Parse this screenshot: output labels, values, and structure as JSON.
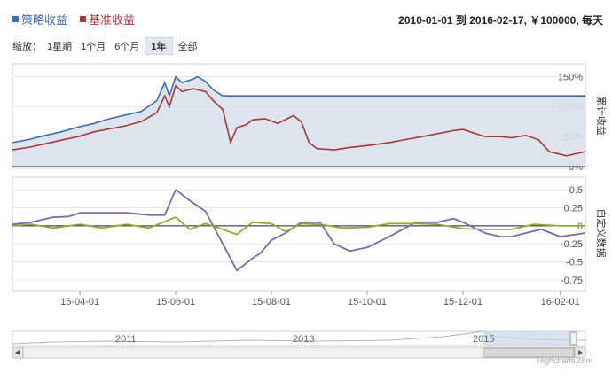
{
  "legend": {
    "strategy": {
      "label": "策略收益",
      "color": "#3f6da8"
    },
    "benchmark": {
      "label": "基准收益",
      "color": "#a33a3a"
    }
  },
  "range_info": "2010-01-01 到 2016-02-17, ￥100000, 每天",
  "zoom": {
    "label": "缩放：",
    "buttons": [
      "1星期",
      "1个月",
      "6个月",
      "1年",
      "全部"
    ],
    "active": "1年"
  },
  "credit": "Highcharts.com",
  "chart_data": [
    {
      "type": "line",
      "ytitle": "累计收益",
      "yticks": [
        "150%",
        "100%",
        "50%",
        "0%"
      ],
      "ylim": [
        0,
        170
      ],
      "xticks": [
        "15-04-01",
        "15-06-01",
        "15-08-01",
        "15-10-01",
        "15-12-01",
        "16-02-01"
      ],
      "series": [
        {
          "name": "策略收益",
          "color": "#3f6da8",
          "fill": "#d9e1ec",
          "x": [
            "15-02-17",
            "15-02-27",
            "15-03-10",
            "15-03-20",
            "15-03-31",
            "15-04-10",
            "15-04-20",
            "15-04-30",
            "15-05-10",
            "15-05-20",
            "15-05-25",
            "15-05-28",
            "15-06-01",
            "15-06-05",
            "15-06-12",
            "15-06-15",
            "15-06-20",
            "15-06-25",
            "15-07-01",
            "15-07-10",
            "15-08-01",
            "15-09-01",
            "15-10-01",
            "15-11-01",
            "15-12-01",
            "16-01-01",
            "16-02-17"
          ],
          "values": [
            40,
            45,
            52,
            58,
            66,
            72,
            80,
            86,
            92,
            110,
            140,
            118,
            150,
            140,
            146,
            150,
            142,
            128,
            118,
            118,
            118,
            118,
            118,
            118,
            118,
            118,
            118
          ]
        },
        {
          "name": "基准收益",
          "color": "#a33a3a",
          "x": [
            "15-02-17",
            "15-02-27",
            "15-03-10",
            "15-03-20",
            "15-03-31",
            "15-04-10",
            "15-04-20",
            "15-04-30",
            "15-05-10",
            "15-05-20",
            "15-05-25",
            "15-05-28",
            "15-06-01",
            "15-06-05",
            "15-06-12",
            "15-06-20",
            "15-06-25",
            "15-07-01",
            "15-07-06",
            "15-07-10",
            "15-07-16",
            "15-07-20",
            "15-07-28",
            "15-08-05",
            "15-08-15",
            "15-08-20",
            "15-08-25",
            "15-08-30",
            "15-09-10",
            "15-09-20",
            "15-10-01",
            "15-10-15",
            "15-10-25",
            "15-11-05",
            "15-11-15",
            "15-11-25",
            "15-12-01",
            "15-12-15",
            "15-12-25",
            "16-01-01",
            "16-01-10",
            "16-01-18",
            "16-01-25",
            "16-02-05",
            "16-02-17"
          ],
          "values": [
            28,
            32,
            38,
            44,
            50,
            58,
            63,
            68,
            75,
            90,
            118,
            100,
            135,
            125,
            130,
            125,
            110,
            95,
            40,
            65,
            70,
            78,
            80,
            72,
            85,
            75,
            40,
            30,
            28,
            32,
            35,
            40,
            45,
            50,
            55,
            60,
            62,
            50,
            50,
            48,
            52,
            45,
            25,
            18,
            25
          ]
        }
      ]
    },
    {
      "type": "line",
      "ytitle": "自定义数据",
      "yticks": [
        "0.5",
        "0.25",
        "0",
        "-0.25",
        "-0.5",
        "-0.75"
      ],
      "ylim": [
        -0.85,
        0.65
      ],
      "series": [
        {
          "name": "purple",
          "color": "#7f67a8",
          "x": [
            "15-02-17",
            "15-03-01",
            "15-03-15",
            "15-03-25",
            "15-04-01",
            "15-04-15",
            "15-05-01",
            "15-05-15",
            "15-05-25",
            "15-06-01",
            "15-06-10",
            "15-06-20",
            "15-07-01",
            "15-07-10",
            "15-07-20",
            "15-07-25",
            "15-08-01",
            "15-08-10",
            "15-08-20",
            "15-09-01",
            "15-09-10",
            "15-09-20",
            "15-10-01",
            "15-10-15",
            "15-11-01",
            "15-11-15",
            "15-11-25",
            "15-12-01",
            "15-12-15",
            "15-12-25",
            "16-01-01",
            "16-01-10",
            "16-01-20",
            "16-02-01",
            "16-02-17"
          ],
          "values": [
            0.02,
            0.05,
            0.12,
            0.13,
            0.18,
            0.18,
            0.18,
            0.15,
            0.15,
            0.5,
            0.35,
            0.2,
            -0.25,
            -0.62,
            -0.45,
            -0.38,
            -0.2,
            -0.1,
            0.05,
            0.05,
            -0.25,
            -0.35,
            -0.3,
            -0.15,
            0.05,
            0.05,
            0.1,
            0.05,
            -0.1,
            -0.15,
            -0.15,
            -0.1,
            -0.05,
            -0.15,
            -0.1
          ]
        },
        {
          "name": "green",
          "color": "#8aa93d",
          "x": [
            "15-02-17",
            "15-03-01",
            "15-03-15",
            "15-04-01",
            "15-04-15",
            "15-05-01",
            "15-05-15",
            "15-06-01",
            "15-06-10",
            "15-06-20",
            "15-07-01",
            "15-07-10",
            "15-07-20",
            "15-08-01",
            "15-08-10",
            "15-08-20",
            "15-09-01",
            "15-09-15",
            "15-10-01",
            "15-10-15",
            "15-11-01",
            "15-11-15",
            "15-12-01",
            "15-12-15",
            "16-01-01",
            "16-01-15",
            "16-02-01",
            "16-02-17"
          ],
          "values": [
            0.0,
            0.02,
            -0.03,
            0.02,
            -0.03,
            0.02,
            -0.03,
            0.12,
            -0.05,
            0.03,
            -0.05,
            -0.12,
            0.05,
            0.03,
            -0.08,
            0.03,
            0.02,
            -0.03,
            -0.02,
            0.03,
            0.03,
            0.02,
            -0.04,
            -0.05,
            -0.05,
            0.02,
            0.0,
            0.0
          ]
        }
      ]
    }
  ],
  "navigator": {
    "labels": [
      "2011",
      "2013",
      "2015"
    ]
  }
}
